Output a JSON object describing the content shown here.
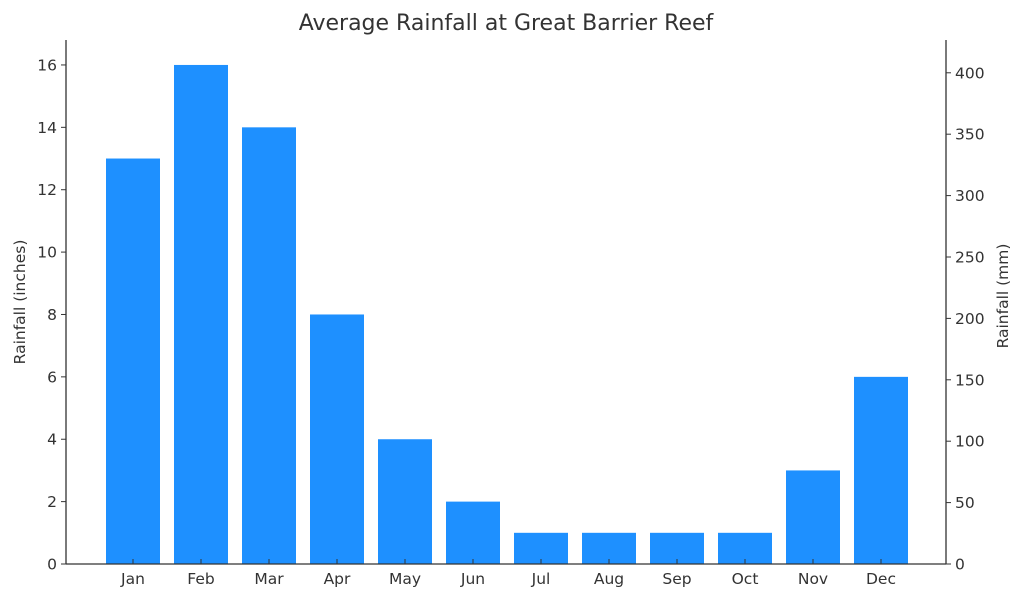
{
  "chart_data": {
    "type": "bar",
    "title": "Average Rainfall at Great Barrier Reef",
    "xlabel": "",
    "ylabel": "Rainfall (inches)",
    "ylabel_right": "Rainfall (mm)",
    "categories": [
      "Jan",
      "Feb",
      "Mar",
      "Apr",
      "May",
      "Jun",
      "Jul",
      "Aug",
      "Sep",
      "Oct",
      "Nov",
      "Dec"
    ],
    "values": [
      13,
      16,
      14,
      8,
      4,
      2,
      1,
      1,
      1,
      1,
      3,
      6
    ],
    "values_mm": [
      330.2,
      406.4,
      355.6,
      203.2,
      101.6,
      50.8,
      25.4,
      25.4,
      25.4,
      25.4,
      76.2,
      152.4
    ],
    "ylim": [
      0,
      16.8
    ],
    "ylim_right": [
      0,
      426.7
    ],
    "yticks": [
      0,
      2,
      4,
      6,
      8,
      10,
      12,
      14,
      16
    ],
    "yticks_right": [
      0,
      50,
      100,
      150,
      200,
      250,
      300,
      350,
      400
    ],
    "bar_color": "#1e90ff",
    "grid": false,
    "legend": null
  }
}
